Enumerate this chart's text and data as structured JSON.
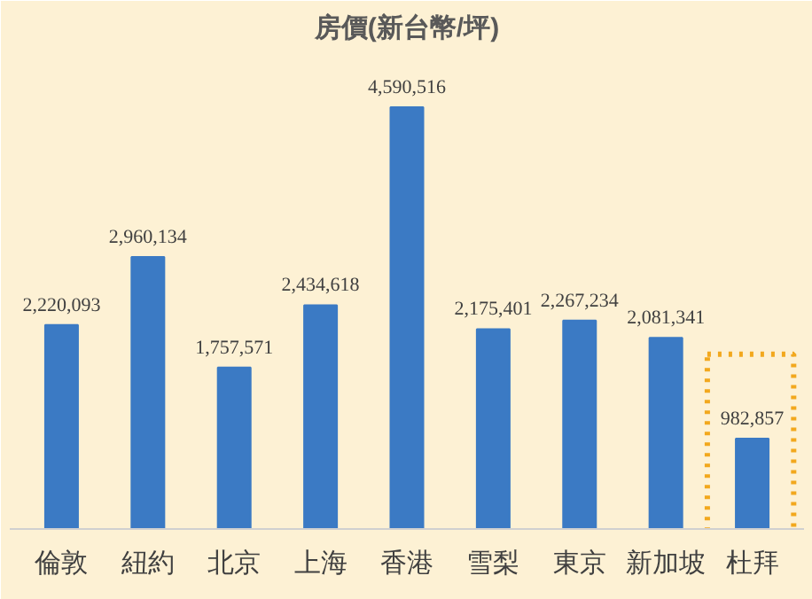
{
  "chart_data": {
    "type": "bar",
    "title": "房價(新台幣/坪)",
    "categories": [
      "倫敦",
      "紐約",
      "北京",
      "上海",
      "香港",
      "雪梨",
      "東京",
      "新加坡",
      "杜拜"
    ],
    "values": [
      2220093,
      2960134,
      1757571,
      2434618,
      4590516,
      2175401,
      2267234,
      2081341,
      982857
    ],
    "value_labels": [
      "2,220,093",
      "2,960,134",
      "1,757,571",
      "2,434,618",
      "4,590,516",
      "2,175,401",
      "2,267,234",
      "2,081,341",
      "982,857"
    ],
    "color": "#3b7ac4",
    "grid": false
  }
}
